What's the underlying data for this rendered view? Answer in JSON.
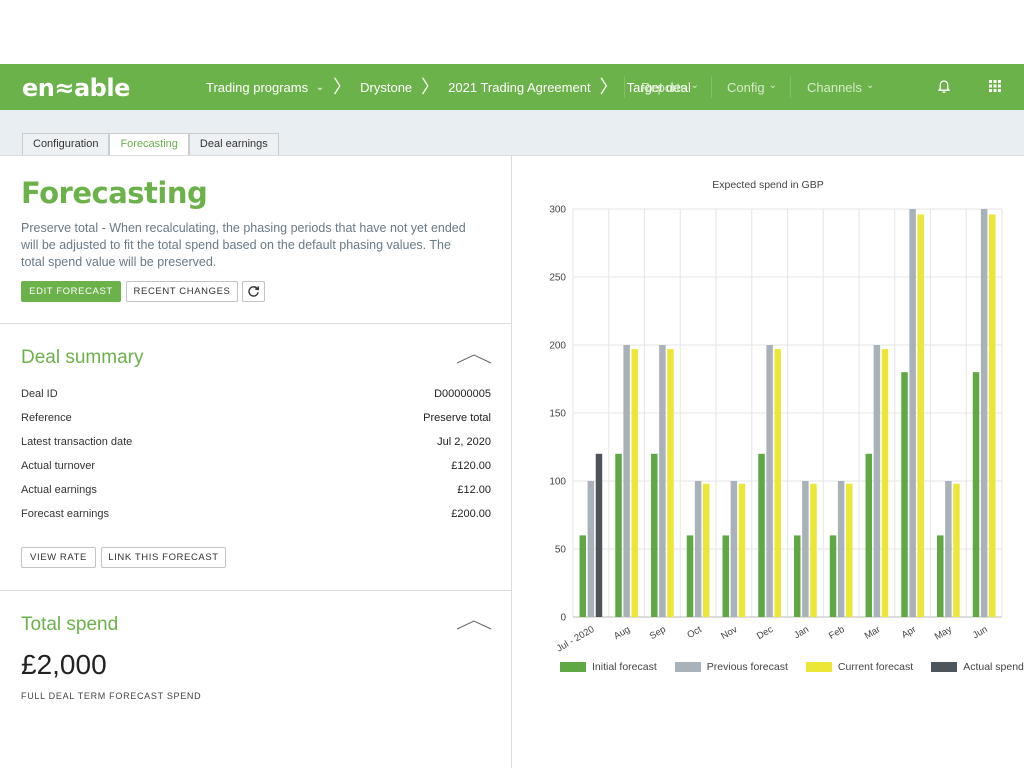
{
  "nav": {
    "logo": "en≈able",
    "breadcrumbs": [
      "Trading programs",
      "Drystone",
      "2021 Trading Agreement",
      "Target deal"
    ],
    "trading_programs_chevron": "⌄",
    "menus": [
      {
        "label": "Reports"
      },
      {
        "label": "Config"
      },
      {
        "label": "Channels"
      }
    ],
    "menu_chevron": "⌄"
  },
  "tabs": [
    {
      "label": "Configuration"
    },
    {
      "label": "Forecasting"
    },
    {
      "label": "Deal earnings"
    }
  ],
  "forecasting": {
    "title": "Forecasting",
    "description": "Preserve total - When recalculating, the phasing periods that have not yet ended will be adjusted to fit the total spend based on the default phasing values. The total spend value will be preserved.",
    "edit_button": "EDIT FORECAST",
    "recent_button": "RECENT CHANGES"
  },
  "deal_summary": {
    "title": "Deal summary",
    "rows": [
      {
        "label": "Deal ID",
        "value": "D00000005"
      },
      {
        "label": "Reference",
        "value": "Preserve total"
      },
      {
        "label": "Latest transaction date",
        "value": "Jul 2, 2020"
      },
      {
        "label": "Actual turnover",
        "value": "£120.00"
      },
      {
        "label": "Actual earnings",
        "value": "£12.00"
      },
      {
        "label": "Forecast earnings",
        "value": "£200.00"
      }
    ],
    "view_rate_button": "VIEW RATE",
    "link_button": "LINK THIS FORECAST"
  },
  "total_spend": {
    "title": "Total spend",
    "value": "£2,000",
    "caption": "FULL DEAL TERM FORECAST SPEND"
  },
  "colors": {
    "brand_green": "#6cb24b",
    "initial": "#5fa844",
    "previous": "#a9b2ba",
    "current": "#ece637",
    "actual": "#4d555b"
  },
  "chart_data": {
    "type": "bar",
    "title": "Expected spend in GBP",
    "categories": [
      "Jul - 2020",
      "Aug",
      "Sep",
      "Oct",
      "Nov",
      "Dec",
      "Jan",
      "Feb",
      "Mar",
      "Apr",
      "May",
      "Jun"
    ],
    "series": [
      {
        "name": "Initial forecast",
        "values": [
          60,
          120,
          120,
          60,
          60,
          120,
          60,
          60,
          120,
          180,
          60,
          180
        ]
      },
      {
        "name": "Previous forecast",
        "values": [
          100,
          200,
          200,
          100,
          100,
          200,
          100,
          100,
          200,
          300,
          100,
          300
        ]
      },
      {
        "name": "Current forecast",
        "values": [
          null,
          197,
          197,
          98,
          98,
          197,
          98,
          98,
          197,
          296,
          98,
          296
        ]
      },
      {
        "name": "Actual spend",
        "values": [
          120,
          null,
          null,
          null,
          null,
          null,
          null,
          null,
          null,
          null,
          null,
          null
        ]
      }
    ],
    "yticks": [
      0,
      50,
      100,
      150,
      200,
      250,
      300
    ],
    "ylim": [
      0,
      300
    ],
    "grid": true,
    "legend": "bottom"
  }
}
